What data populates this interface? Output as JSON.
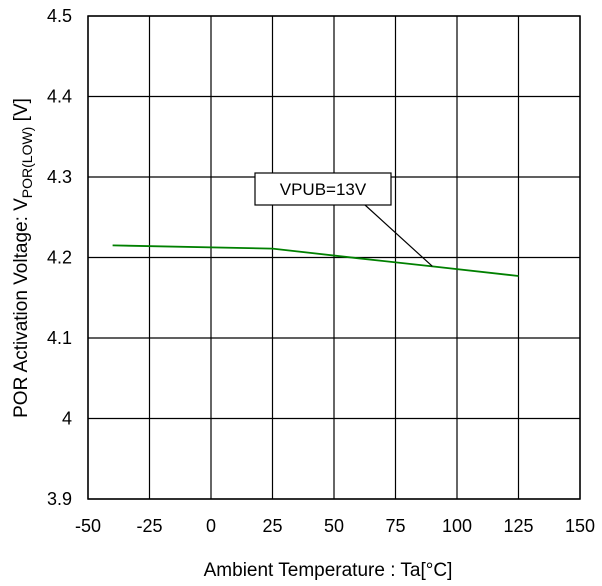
{
  "chart_data": {
    "type": "line",
    "xlabel": "Ambient Temperature : Ta[°C]",
    "ylabel_parts": {
      "main": "POR Activation Voltage:  V",
      "sub": "POR(LOW)",
      "unit": " [V]"
    },
    "xlim": [
      -50,
      150
    ],
    "ylim": [
      3.9,
      4.5
    ],
    "x_ticks": [
      -50,
      -25,
      0,
      25,
      50,
      75,
      100,
      125,
      150
    ],
    "y_ticks": [
      3.9,
      4.0,
      4.1,
      4.2,
      4.3,
      4.4,
      4.5
    ],
    "x_tick_labels": [
      "-50",
      "-25",
      "0",
      "25",
      "50",
      "75",
      "100",
      "125",
      "150"
    ],
    "y_tick_labels": [
      "3.9",
      "4",
      "4.1",
      "4.2",
      "4.3",
      "4.4",
      "4.5"
    ],
    "grid": true,
    "series": [
      {
        "color": "#008000",
        "x": [
          -40,
          25,
          60,
          90,
          125
        ],
        "y": [
          4.215,
          4.211,
          4.199,
          4.189,
          4.177
        ]
      }
    ],
    "annotations": [
      {
        "text": "VPUB=13V",
        "target": {
          "x": 90,
          "y": 4.189
        }
      }
    ]
  }
}
